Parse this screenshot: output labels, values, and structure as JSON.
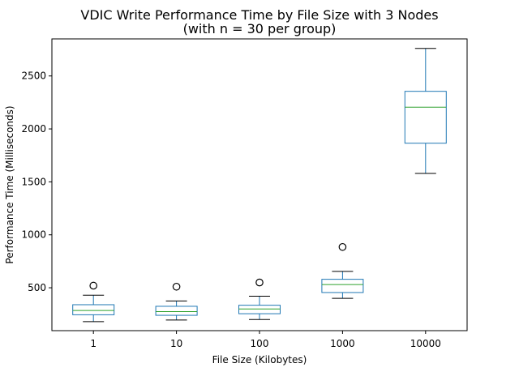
{
  "chart_data": {
    "type": "box",
    "title": "VDIC Write Performance Time by File Size with 3 Nodes",
    "subtitle": "(with n = 30 per group)",
    "xlabel": "File Size (Kilobytes)",
    "ylabel": "Performance Time (Milliseconds)",
    "ylim": [
      95,
      2850
    ],
    "yticks": [
      500,
      1000,
      1500,
      2000,
      2500
    ],
    "grid": false,
    "categories": [
      "1",
      "10",
      "100",
      "1000",
      "10000"
    ],
    "boxes": [
      {
        "category": "1",
        "whisker_low": 180,
        "q1": 245,
        "median": 285,
        "q3": 340,
        "whisker_high": 430,
        "outliers": [
          520
        ]
      },
      {
        "category": "10",
        "whisker_low": 195,
        "q1": 240,
        "median": 275,
        "q3": 325,
        "whisker_high": 375,
        "outliers": [
          510
        ]
      },
      {
        "category": "100",
        "whisker_low": 200,
        "q1": 255,
        "median": 300,
        "q3": 335,
        "whisker_high": 420,
        "outliers": [
          550
        ]
      },
      {
        "category": "1000",
        "whisker_low": 400,
        "q1": 455,
        "median": 530,
        "q3": 580,
        "whisker_high": 655,
        "outliers": [
          885
        ]
      },
      {
        "category": "10000",
        "whisker_low": 1580,
        "q1": 1865,
        "median": 2205,
        "q3": 2355,
        "whisker_high": 2760,
        "outliers": []
      }
    ],
    "colors": {
      "box": "#1f77b4",
      "median": "#2ca02c",
      "whisker": "#000000",
      "outlier": "#000000"
    }
  }
}
